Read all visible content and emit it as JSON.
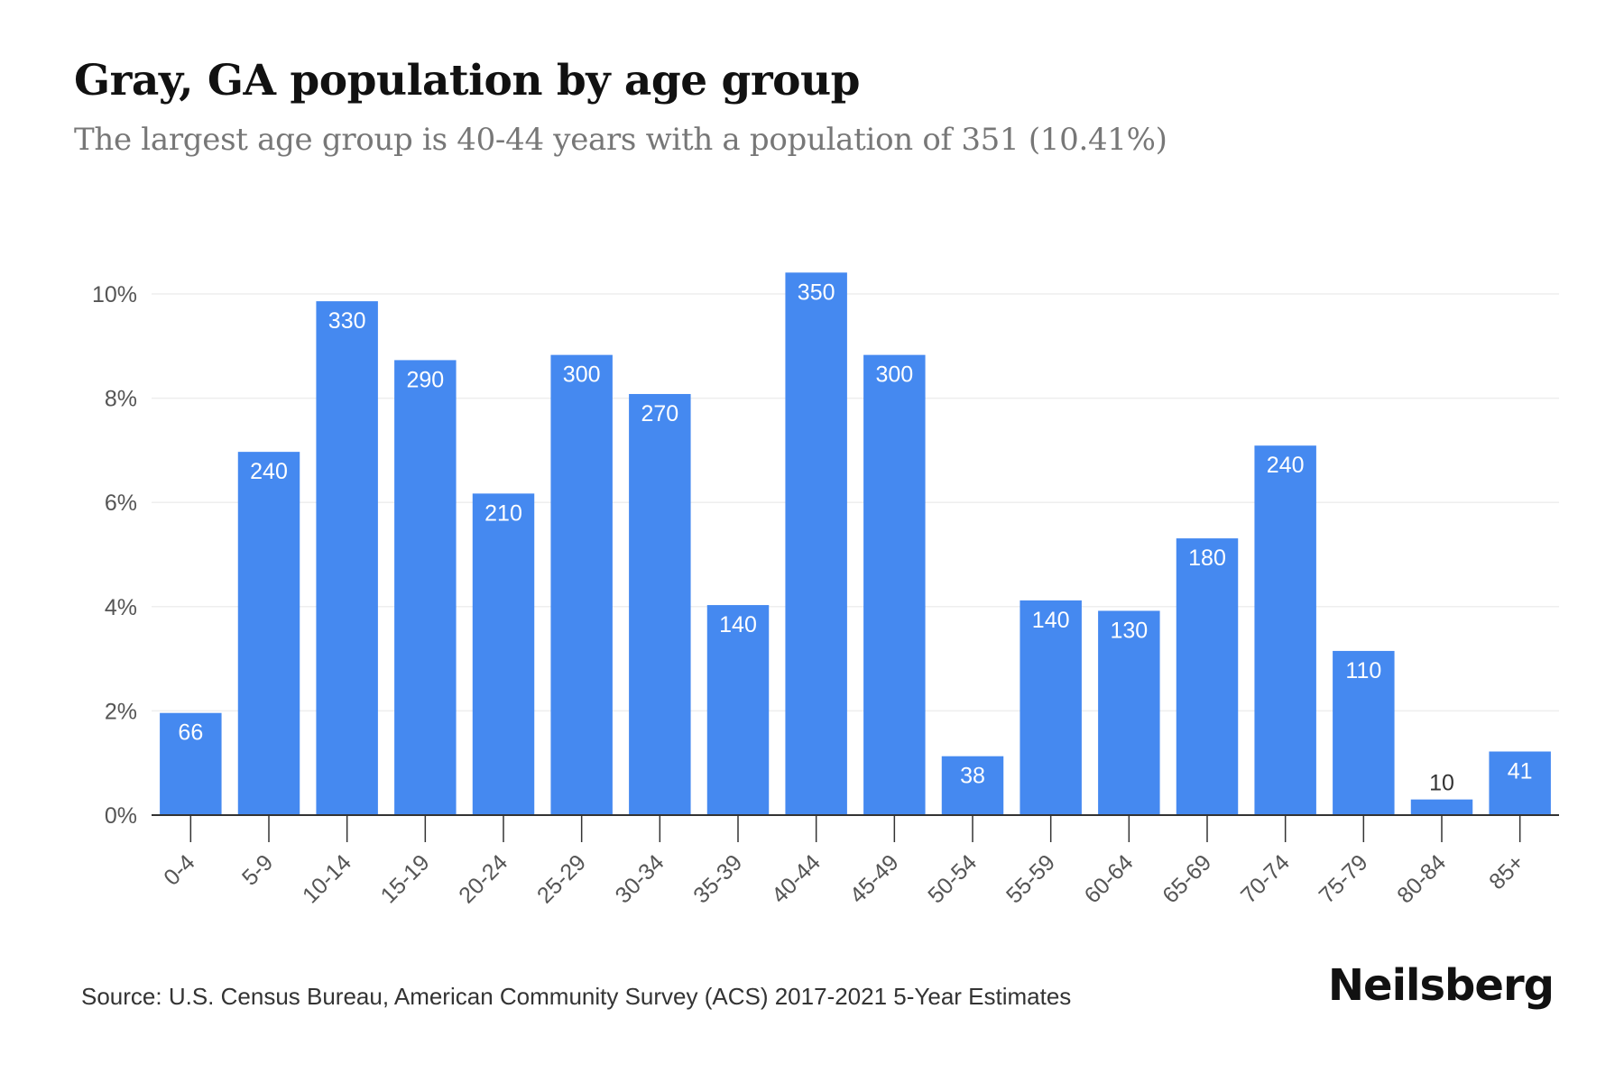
{
  "title": "Gray, GA population by age group",
  "subtitle": "The largest age group is 40-44 years with a population of 351 (10.41%)",
  "source": "Source: U.S. Census Bureau, American Community Survey (ACS) 2017-2021 5-Year Estimates",
  "brand": "Neilsberg",
  "colors": {
    "bar": "#4589f0",
    "bar_label": "#ffffff",
    "value_label_outside": "#333333",
    "grid": "#eeeeee",
    "axis": "#333333",
    "tick_text": "#555555"
  },
  "chart_data": {
    "type": "bar",
    "categories": [
      "0-4",
      "5-9",
      "10-14",
      "15-19",
      "20-24",
      "25-29",
      "30-34",
      "35-39",
      "40-44",
      "45-49",
      "50-54",
      "55-59",
      "60-64",
      "65-69",
      "70-74",
      "75-79",
      "80-84",
      "85+"
    ],
    "values": [
      1.96,
      6.97,
      9.86,
      8.73,
      6.17,
      8.83,
      8.08,
      4.03,
      10.41,
      8.83,
      1.13,
      4.12,
      3.92,
      5.31,
      7.09,
      3.15,
      0.3,
      1.22
    ],
    "data_labels": [
      "66",
      "240",
      "330",
      "290",
      "210",
      "300",
      "270",
      "140",
      "350",
      "300",
      "38",
      "140",
      "130",
      "180",
      "240",
      "110",
      "10",
      "41"
    ],
    "yticks": [
      0,
      2,
      4,
      6,
      8,
      10
    ],
    "ytick_labels": [
      "0%",
      "2%",
      "4%",
      "6%",
      "8%",
      "10%"
    ],
    "ylim": [
      0,
      10.5
    ],
    "grid": true,
    "xlabel": "",
    "ylabel": ""
  }
}
